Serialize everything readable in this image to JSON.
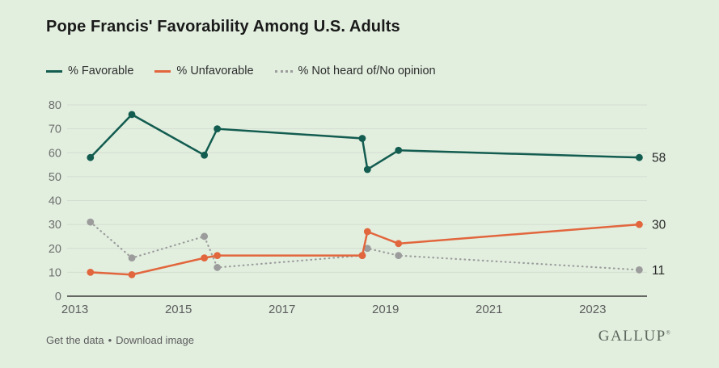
{
  "page": {
    "background": "#e2efdf"
  },
  "header": {
    "title": "Pope Francis' Favorability Among U.S. Adults"
  },
  "legend": [
    {
      "label": "% Favorable",
      "color": "#135c50",
      "style": "solid"
    },
    {
      "label": "% Unfavorable",
      "color": "#e2663d",
      "style": "solid"
    },
    {
      "label": "% Not heard of/No opinion",
      "color": "#9c9c9c",
      "style": "dotted"
    }
  ],
  "chart_data": {
    "type": "line",
    "title": "Pope Francis' Favorability Among U.S. Adults",
    "xlabel": "",
    "ylabel": "",
    "x": [
      2013.3,
      2014.1,
      2015.5,
      2015.75,
      2018.55,
      2018.65,
      2019.25,
      2023.9
    ],
    "series": [
      {
        "key": "favorable",
        "name": "% Favorable",
        "color": "#135c50",
        "style": "solid",
        "values": [
          58,
          76,
          59,
          70,
          66,
          53,
          61,
          58
        ],
        "end_label": "58"
      },
      {
        "key": "unfavorable",
        "name": "% Unfavorable",
        "color": "#e2663d",
        "style": "solid",
        "values": [
          10,
          9,
          16,
          17,
          17,
          27,
          22,
          30
        ],
        "end_label": "30"
      },
      {
        "key": "no-opinion",
        "name": "% Not heard of/No opinion",
        "color": "#9c9c9c",
        "style": "dotted",
        "values": [
          31,
          16,
          25,
          12,
          17,
          20,
          17,
          11
        ],
        "end_label": "11"
      }
    ],
    "xlim": [
      2012.85,
      2024.05
    ],
    "ylim": [
      0,
      80
    ],
    "y_ticks": [
      0,
      10,
      20,
      30,
      40,
      50,
      60,
      70,
      80
    ],
    "x_ticks": [
      2013,
      2015,
      2017,
      2019,
      2021,
      2023
    ],
    "x_tick_labels": [
      "2013",
      "2015",
      "2017",
      "2019",
      "2021",
      "2023"
    ],
    "grid": true,
    "legend_position": "top"
  },
  "footer": {
    "link_data": "Get the data",
    "separator": "•",
    "link_download": "Download image",
    "logo": "GALLUP",
    "logo_mark": "®"
  }
}
